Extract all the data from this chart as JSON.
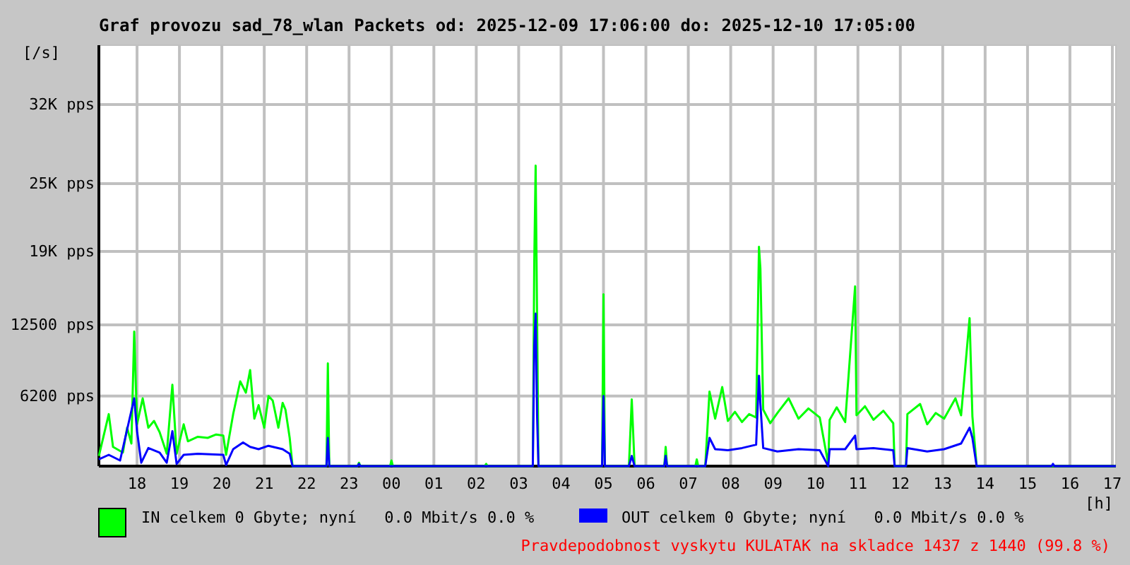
{
  "chart_data": {
    "type": "line",
    "title": "Graf provozu sad_78_wlan Packets od: 2025-12-09 17:06:00 do: 2025-12-10 17:05:00",
    "ylabel": "[/s]",
    "xlabel": "[h]",
    "xlim": [
      "2025-12-09T17:06",
      "2025-12-10T17:05"
    ],
    "xticks": [
      {
        "value": "2025-12-09T18:00",
        "label": "18"
      },
      {
        "value": "2025-12-09T19:00",
        "label": "19"
      },
      {
        "value": "2025-12-09T20:00",
        "label": "20"
      },
      {
        "value": "2025-12-09T21:00",
        "label": "21"
      },
      {
        "value": "2025-12-09T22:00",
        "label": "22"
      },
      {
        "value": "2025-12-09T23:00",
        "label": "23"
      },
      {
        "value": "2025-12-10T00:00",
        "label": "00"
      },
      {
        "value": "2025-12-10T01:00",
        "label": "01"
      },
      {
        "value": "2025-12-10T02:00",
        "label": "02"
      },
      {
        "value": "2025-12-10T03:00",
        "label": "03"
      },
      {
        "value": "2025-12-10T04:00",
        "label": "04"
      },
      {
        "value": "2025-12-10T05:00",
        "label": "05"
      },
      {
        "value": "2025-12-10T06:00",
        "label": "06"
      },
      {
        "value": "2025-12-10T07:00",
        "label": "07"
      },
      {
        "value": "2025-12-10T08:00",
        "label": "08"
      },
      {
        "value": "2025-12-10T09:00",
        "label": "09"
      },
      {
        "value": "2025-12-10T10:00",
        "label": "10"
      },
      {
        "value": "2025-12-10T11:00",
        "label": "11"
      },
      {
        "value": "2025-12-10T12:00",
        "label": "12"
      },
      {
        "value": "2025-12-10T13:00",
        "label": "13"
      },
      {
        "value": "2025-12-10T14:00",
        "label": "14"
      },
      {
        "value": "2025-12-10T15:00",
        "label": "15"
      },
      {
        "value": "2025-12-10T16:00",
        "label": "16"
      },
      {
        "value": "2025-12-10T17:00",
        "label": "17"
      }
    ],
    "ylim": [
      0,
      37250
    ],
    "yticks": [
      {
        "value": 6200,
        "label": "6200 pps"
      },
      {
        "value": 12500,
        "label": "12500 pps"
      },
      {
        "value": 19000,
        "label": "19K pps"
      },
      {
        "value": 25000,
        "label": "25K pps"
      },
      {
        "value": 32000,
        "label": "32K pps"
      }
    ],
    "grid": true,
    "legend": "bottom",
    "marker": "none",
    "line_style": "solid",
    "annotations": [
      "Pravdepodobnost vyskytu KULATAK na skladce 1437 z 1440 (99.8 %)"
    ],
    "series": [
      {
        "name": "IN celkem 0 Gbyte; nyní   0.0 Mbit/s 0.0 %",
        "color": "#00ff00",
        "x": [
          "2025-12-09T17:06",
          "2025-12-09T17:20",
          "2025-12-09T17:26",
          "2025-12-09T17:40",
          "2025-12-09T17:46",
          "2025-12-09T17:52",
          "2025-12-09T17:56",
          "2025-12-09T18:00",
          "2025-12-09T18:08",
          "2025-12-09T18:16",
          "2025-12-09T18:24",
          "2025-12-09T18:32",
          "2025-12-09T18:42",
          "2025-12-09T18:50",
          "2025-12-09T18:56",
          "2025-12-09T19:06",
          "2025-12-09T19:12",
          "2025-12-09T19:26",
          "2025-12-09T19:40",
          "2025-12-09T19:52",
          "2025-12-09T20:02",
          "2025-12-09T20:06",
          "2025-12-09T20:16",
          "2025-12-09T20:26",
          "2025-12-09T20:34",
          "2025-12-09T20:40",
          "2025-12-09T20:46",
          "2025-12-09T20:52",
          "2025-12-09T21:00",
          "2025-12-09T21:06",
          "2025-12-09T21:12",
          "2025-12-09T21:20",
          "2025-12-09T21:26",
          "2025-12-09T21:30",
          "2025-12-09T21:36",
          "2025-12-09T21:40",
          "2025-12-09T22:28",
          "2025-12-09T22:30",
          "2025-12-09T22:32",
          "2025-12-09T23:12",
          "2025-12-09T23:14",
          "2025-12-09T23:16",
          "2025-12-09T23:58",
          "2025-12-10T00:00",
          "2025-12-10T00:02",
          "2025-12-10T02:12",
          "2025-12-10T02:14",
          "2025-12-10T02:16",
          "2025-12-10T03:20",
          "2025-12-10T03:22",
          "2025-12-10T03:24",
          "2025-12-10T03:26",
          "2025-12-10T03:28",
          "2025-12-10T04:58",
          "2025-12-10T05:00",
          "2025-12-10T05:02",
          "2025-12-10T05:36",
          "2025-12-10T05:40",
          "2025-12-10T05:44",
          "2025-12-10T06:26",
          "2025-12-10T06:28",
          "2025-12-10T06:30",
          "2025-12-10T07:10",
          "2025-12-10T07:12",
          "2025-12-10T07:14",
          "2025-12-10T07:24",
          "2025-12-10T07:30",
          "2025-12-10T07:38",
          "2025-12-10T07:48",
          "2025-12-10T07:56",
          "2025-12-10T08:06",
          "2025-12-10T08:16",
          "2025-12-10T08:26",
          "2025-12-10T08:36",
          "2025-12-10T08:40",
          "2025-12-10T08:42",
          "2025-12-10T08:46",
          "2025-12-10T08:56",
          "2025-12-10T09:06",
          "2025-12-10T09:22",
          "2025-12-10T09:36",
          "2025-12-10T09:50",
          "2025-12-10T10:06",
          "2025-12-10T10:18",
          "2025-12-10T10:20",
          "2025-12-10T10:30",
          "2025-12-10T10:42",
          "2025-12-10T10:56",
          "2025-12-10T10:58",
          "2025-12-10T11:10",
          "2025-12-10T11:22",
          "2025-12-10T11:36",
          "2025-12-10T11:50",
          "2025-12-10T11:52",
          "2025-12-10T12:08",
          "2025-12-10T12:10",
          "2025-12-10T12:28",
          "2025-12-10T12:38",
          "2025-12-10T12:50",
          "2025-12-10T13:02",
          "2025-12-10T13:18",
          "2025-12-10T13:26",
          "2025-12-10T13:38",
          "2025-12-10T13:42",
          "2025-12-10T13:48",
          "2025-12-10T17:05"
        ],
        "values": [
          900,
          4600,
          1700,
          1200,
          3400,
          2000,
          11900,
          3700,
          6000,
          3400,
          4000,
          3000,
          1100,
          7200,
          1100,
          3700,
          2200,
          2600,
          2500,
          2800,
          2700,
          1000,
          4600,
          7500,
          6500,
          8500,
          4200,
          5400,
          3400,
          6200,
          5800,
          3400,
          5600,
          5000,
          2500,
          0,
          0,
          9100,
          0,
          0,
          300,
          0,
          0,
          500,
          0,
          0,
          200,
          0,
          0,
          17800,
          26600,
          13400,
          0,
          0,
          15200,
          0,
          0,
          5900,
          0,
          0,
          1700,
          0,
          0,
          600,
          0,
          0,
          6600,
          4200,
          7000,
          4000,
          4800,
          3900,
          4600,
          4300,
          19400,
          17500,
          5000,
          3800,
          4700,
          6000,
          4200,
          5100,
          4300,
          200,
          4100,
          5200,
          3900,
          15900,
          4500,
          5300,
          4100,
          4900,
          3800,
          0,
          0,
          4600,
          5500,
          3700,
          4700,
          4200,
          6000,
          4500,
          13100,
          4400,
          0,
          0
        ]
      },
      {
        "name": "OUT celkem 0 Gbyte; nyní   0.0 Mbit/s 0.0 %",
        "color": "#0000ff",
        "x": [
          "2025-12-09T17:06",
          "2025-12-09T17:20",
          "2025-12-09T17:36",
          "2025-12-09T17:56",
          "2025-12-09T18:00",
          "2025-12-09T18:06",
          "2025-12-09T18:16",
          "2025-12-09T18:32",
          "2025-12-09T18:42",
          "2025-12-09T18:50",
          "2025-12-09T18:56",
          "2025-12-09T19:06",
          "2025-12-09T19:26",
          "2025-12-09T20:02",
          "2025-12-09T20:06",
          "2025-12-09T20:16",
          "2025-12-09T20:30",
          "2025-12-09T20:40",
          "2025-12-09T20:52",
          "2025-12-09T21:06",
          "2025-12-09T21:26",
          "2025-12-09T21:36",
          "2025-12-09T21:40",
          "2025-12-09T22:28",
          "2025-12-09T22:30",
          "2025-12-09T22:32",
          "2025-12-09T23:12",
          "2025-12-09T23:14",
          "2025-12-09T23:16",
          "2025-12-10T03:20",
          "2025-12-10T03:22",
          "2025-12-10T03:24",
          "2025-12-10T03:26",
          "2025-12-10T03:28",
          "2025-12-10T04:58",
          "2025-12-10T05:00",
          "2025-12-10T05:02",
          "2025-12-10T05:36",
          "2025-12-10T05:40",
          "2025-12-10T05:44",
          "2025-12-10T06:26",
          "2025-12-10T06:28",
          "2025-12-10T06:30",
          "2025-12-10T07:24",
          "2025-12-10T07:30",
          "2025-12-10T07:38",
          "2025-12-10T07:56",
          "2025-12-10T08:16",
          "2025-12-10T08:36",
          "2025-12-10T08:40",
          "2025-12-10T08:42",
          "2025-12-10T08:46",
          "2025-12-10T09:06",
          "2025-12-10T09:36",
          "2025-12-10T10:06",
          "2025-12-10T10:18",
          "2025-12-10T10:20",
          "2025-12-10T10:42",
          "2025-12-10T10:56",
          "2025-12-10T10:58",
          "2025-12-10T11:22",
          "2025-12-10T11:50",
          "2025-12-10T11:52",
          "2025-12-10T12:08",
          "2025-12-10T12:10",
          "2025-12-10T12:38",
          "2025-12-10T13:02",
          "2025-12-10T13:26",
          "2025-12-10T13:38",
          "2025-12-10T13:42",
          "2025-12-10T13:48",
          "2025-12-10T15:34",
          "2025-12-10T15:36",
          "2025-12-10T15:38",
          "2025-12-10T17:05"
        ],
        "values": [
          600,
          1000,
          500,
          6000,
          3100,
          300,
          1600,
          1200,
          300,
          3100,
          200,
          1000,
          1100,
          1000,
          100,
          1500,
          2100,
          1700,
          1500,
          1800,
          1500,
          1100,
          0,
          0,
          2500,
          0,
          0,
          200,
          0,
          0,
          10500,
          13500,
          4500,
          0,
          0,
          6200,
          0,
          0,
          900,
          0,
          0,
          900,
          0,
          0,
          2500,
          1500,
          1400,
          1600,
          1900,
          8000,
          5500,
          1600,
          1300,
          1500,
          1400,
          0,
          1500,
          1500,
          2700,
          1500,
          1600,
          1400,
          0,
          0,
          1600,
          1300,
          1500,
          2000,
          3400,
          2500,
          0,
          0,
          200,
          0,
          0
        ]
      }
    ]
  }
}
